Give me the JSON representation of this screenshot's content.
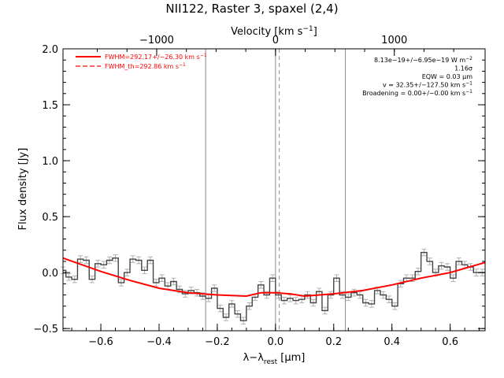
{
  "chart_data": {
    "type": "line",
    "title": "NII122, Raster 3, spaxel (2,4)",
    "xlabel": "λ−λ",
    "xlabel_sub": "rest",
    "xlabel_unit": " [μm]",
    "ylabel": "Flux density [Jy]",
    "top_axis_label": "Velocity [km s",
    "top_axis_label_sup": "−1",
    "top_axis_label_end": "]",
    "xlim": [
      -0.73,
      0.72
    ],
    "ylim": [
      -0.52,
      2.0
    ],
    "x_ticks": [
      -0.6,
      -0.4,
      -0.2,
      0.0,
      0.2,
      0.4,
      0.6
    ],
    "x_tick_labels": [
      "−0.6",
      "−0.4",
      "−0.2",
      "0.0",
      "0.2",
      "0.4",
      "0.6"
    ],
    "y_ticks": [
      -0.5,
      0.0,
      0.5,
      1.0,
      1.5,
      2.0
    ],
    "y_tick_labels": [
      "−0.5",
      "0.0",
      "0.5",
      "1.0",
      "1.5",
      "2.0"
    ],
    "top_ticks_kms": [
      -1000,
      0,
      1000
    ],
    "top_tick_labels": [
      "−1000",
      "0",
      "1000"
    ],
    "velocity_per_micron": 2450,
    "vertical_lines": [
      -0.24,
      0.0,
      0.24
    ],
    "vertical_dashed_line": 0.013,
    "legend": [
      {
        "label": "FWHM=292.17+/−26.30 km s",
        "sup": "−1",
        "style": "solid",
        "color": "#ff0000"
      },
      {
        "label": "FWHM_th=292.86 km s",
        "sup": "−1",
        "style": "dashed",
        "color": "#ff0000"
      }
    ],
    "annotations": [
      {
        "text": "8.13e−19+/−6.95e−19 W m",
        "sup": "−2"
      },
      {
        "text": "1.16σ"
      },
      {
        "text": "EQW = 0.03 μm"
      },
      {
        "text": "v = 32.35+/−127.50 km s",
        "sup": "−1"
      },
      {
        "text": "Broadening = 0.00+/−0.00 km s",
        "sup": "−1"
      }
    ],
    "series": [
      {
        "style": "histogram",
        "color": "#444444",
        "bin_width": 0.0197,
        "x": [
          -0.73,
          -0.71,
          -0.69,
          -0.67,
          -0.65,
          -0.63,
          -0.61,
          -0.59,
          -0.57,
          -0.55,
          -0.53,
          -0.51,
          -0.49,
          -0.47,
          -0.45,
          -0.43,
          -0.41,
          -0.39,
          -0.37,
          -0.35,
          -0.33,
          -0.31,
          -0.29,
          -0.27,
          -0.25,
          -0.23,
          -0.21,
          -0.19,
          -0.17,
          -0.15,
          -0.13,
          -0.11,
          -0.09,
          -0.07,
          -0.05,
          -0.03,
          -0.01,
          0.01,
          0.03,
          0.05,
          0.07,
          0.09,
          0.11,
          0.13,
          0.15,
          0.17,
          0.19,
          0.21,
          0.23,
          0.25,
          0.27,
          0.29,
          0.31,
          0.33,
          0.35,
          0.37,
          0.39,
          0.41,
          0.43,
          0.45,
          0.47,
          0.49,
          0.51,
          0.53,
          0.55,
          0.57,
          0.59,
          0.61,
          0.63,
          0.65,
          0.67,
          0.69,
          0.71
        ],
        "y": [
          0.02,
          -0.04,
          -0.06,
          0.12,
          0.11,
          -0.06,
          0.08,
          0.07,
          0.11,
          0.13,
          -0.09,
          0.0,
          0.12,
          0.11,
          0.02,
          0.11,
          -0.09,
          -0.05,
          -0.12,
          -0.08,
          -0.15,
          -0.19,
          -0.16,
          -0.18,
          -0.21,
          -0.23,
          -0.14,
          -0.32,
          -0.4,
          -0.28,
          -0.37,
          -0.43,
          -0.3,
          -0.22,
          -0.11,
          -0.2,
          -0.05,
          -0.2,
          -0.25,
          -0.23,
          -0.25,
          -0.24,
          -0.2,
          -0.27,
          -0.17,
          -0.34,
          -0.2,
          -0.05,
          -0.2,
          -0.22,
          -0.18,
          -0.2,
          -0.27,
          -0.28,
          -0.16,
          -0.2,
          -0.24,
          -0.3,
          -0.1,
          -0.05,
          -0.05,
          0.01,
          0.18,
          0.1,
          0.0,
          0.06,
          0.05,
          -0.05,
          0.1,
          0.07,
          0.05,
          0.0,
          0.0
        ],
        "error": 0.03
      },
      {
        "style": "solid",
        "color": "#ff0000",
        "x": [
          -0.73,
          -0.6,
          -0.5,
          -0.4,
          -0.3,
          -0.2,
          -0.1,
          -0.05,
          0.0,
          0.05,
          0.1,
          0.2,
          0.3,
          0.4,
          0.5,
          0.6,
          0.72
        ],
        "y": [
          0.13,
          0.01,
          -0.07,
          -0.14,
          -0.18,
          -0.2,
          -0.21,
          -0.18,
          -0.18,
          -0.19,
          -0.21,
          -0.19,
          -0.16,
          -0.11,
          -0.05,
          0.0,
          0.09
        ]
      }
    ]
  }
}
